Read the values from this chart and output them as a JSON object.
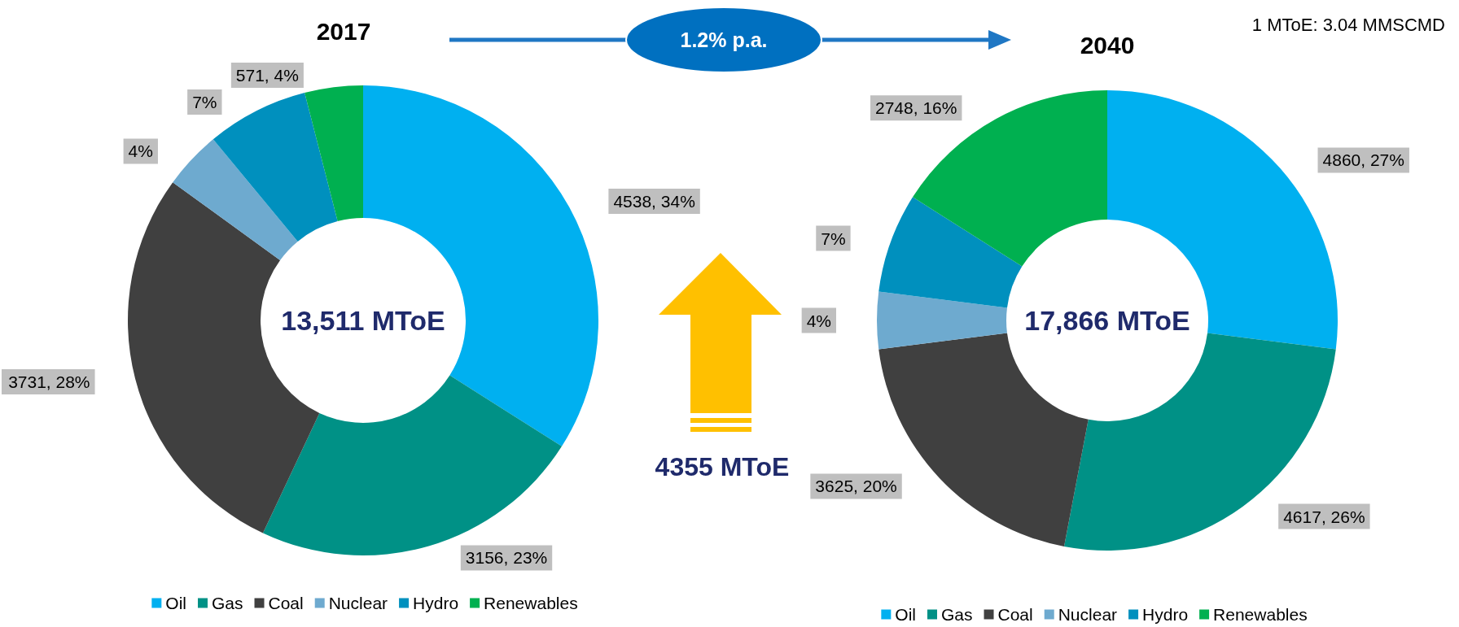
{
  "chart_data": [
    {
      "type": "donut",
      "title": "2017",
      "categories": [
        "Oil",
        "Gas",
        "Coal",
        "Nuclear",
        "Hydro",
        "Renewables"
      ],
      "values": [
        34,
        23,
        28,
        4,
        7,
        4
      ],
      "value_labels": [
        "4538, 34%",
        "3156, 23%",
        "3731, 28%",
        "4%",
        "7%",
        "571, 4%"
      ],
      "colors": [
        "#00b0f0",
        "#009186",
        "#404040",
        "#6eaacf",
        "#0090be",
        "#00b050"
      ],
      "legend": "bottom",
      "annotations": [
        "13,511 MToE",
        "1.2% p.a.",
        "4355 MToE"
      ]
    },
    {
      "type": "donut",
      "title": "2040",
      "categories": [
        "Oil",
        "Gas",
        "Coal",
        "Nuclear",
        "Hydro",
        "Renewables"
      ],
      "values": [
        27,
        26,
        20,
        4,
        7,
        16
      ],
      "value_labels": [
        "4860, 27%",
        "4617, 26%",
        "3625, 20%",
        "4%",
        "7%",
        "2748, 16%"
      ],
      "colors": [
        "#00b0f0",
        "#009186",
        "#404040",
        "#6eaacf",
        "#0090be",
        "#00b050"
      ],
      "legend": "bottom",
      "annotations": [
        "17,866 MToE",
        "1 MToE: 3.04 MMSCMD"
      ]
    }
  ]
}
